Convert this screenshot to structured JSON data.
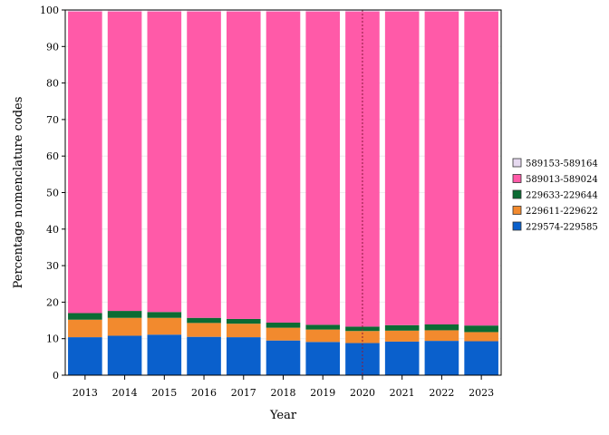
{
  "chart_data": {
    "type": "bar",
    "stacked": true,
    "categories": [
      "2013",
      "2014",
      "2015",
      "2016",
      "2017",
      "2018",
      "2019",
      "2020",
      "2021",
      "2022",
      "2023"
    ],
    "xlabel": "Year",
    "ylabel": "Percentage nomenclature codes",
    "ylim": [
      0,
      100
    ],
    "yticks": [
      0,
      10,
      20,
      30,
      40,
      50,
      60,
      70,
      80,
      90,
      100
    ],
    "grid": true,
    "legend_position": "right",
    "reference_line_category": "2020",
    "series": [
      {
        "name": "229574-229585",
        "color": "#0a60cc",
        "values": [
          10.4,
          10.8,
          11.1,
          10.5,
          10.4,
          9.5,
          9.1,
          8.8,
          9.2,
          9.4,
          9.3
        ]
      },
      {
        "name": "229611-229622",
        "color": "#f28a2e",
        "values": [
          4.8,
          4.9,
          4.6,
          3.8,
          3.7,
          3.5,
          3.4,
          3.3,
          3.0,
          2.9,
          2.5
        ]
      },
      {
        "name": "229633-229644",
        "color": "#0b6b33",
        "values": [
          1.8,
          1.9,
          1.6,
          1.4,
          1.3,
          1.4,
          1.3,
          1.2,
          1.5,
          1.6,
          1.8
        ]
      },
      {
        "name": "589013-589024",
        "color": "#ff5aa8",
        "values": [
          82.6,
          82.0,
          82.3,
          83.9,
          84.2,
          85.2,
          85.8,
          86.3,
          85.9,
          85.7,
          86.0
        ]
      },
      {
        "name": "589153-589164",
        "color": "#e6d9f0",
        "values": [
          0.4,
          0.4,
          0.4,
          0.4,
          0.4,
          0.4,
          0.4,
          0.4,
          0.4,
          0.4,
          0.4
        ]
      }
    ],
    "legend_order": [
      "589153-589164",
      "589013-589024",
      "229633-229644",
      "229611-229622",
      "229574-229585"
    ]
  }
}
